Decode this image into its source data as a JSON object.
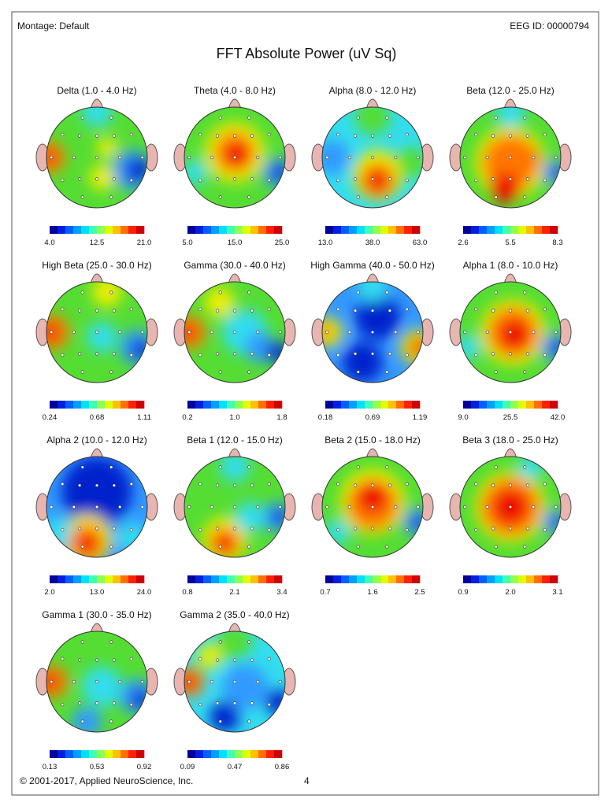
{
  "header": {
    "montage": "Montage:  Default",
    "eeg_id": "EEG ID:  00000794"
  },
  "title": "FFT Absolute Power  (uV Sq)",
  "maps": [
    {
      "title": "Delta (1.0 - 4.0 Hz)",
      "scale": [
        "4.0",
        "12.5",
        "21.0"
      ]
    },
    {
      "title": "Theta (4.0 - 8.0 Hz)",
      "scale": [
        "5.0",
        "15.0",
        "25.0"
      ]
    },
    {
      "title": "Alpha (8.0 - 12.0 Hz)",
      "scale": [
        "13.0",
        "38.0",
        "63.0"
      ]
    },
    {
      "title": "Beta (12.0 - 25.0 Hz)",
      "scale": [
        "2.6",
        "5.5",
        "8.3"
      ]
    },
    {
      "title": "High Beta (25.0 - 30.0 Hz)",
      "scale": [
        "0.24",
        "0.68",
        "1.11"
      ]
    },
    {
      "title": "Gamma (30.0 - 40.0 Hz)",
      "scale": [
        "0.2",
        "1.0",
        "1.8"
      ]
    },
    {
      "title": "High Gamma (40.0 - 50.0 Hz)",
      "scale": [
        "0.18",
        "0.69",
        "1.19"
      ]
    },
    {
      "title": "Alpha 1 (8.0 - 10.0 Hz)",
      "scale": [
        "9.0",
        "25.5",
        "42.0"
      ]
    },
    {
      "title": "Alpha 2 (10.0 - 12.0 Hz)",
      "scale": [
        "2.0",
        "13.0",
        "24.0"
      ]
    },
    {
      "title": "Beta 1 (12.0 - 15.0 Hz)",
      "scale": [
        "0.8",
        "2.1",
        "3.4"
      ]
    },
    {
      "title": "Beta 2 (15.0 - 18.0 Hz)",
      "scale": [
        "0.7",
        "1.6",
        "2.5"
      ]
    },
    {
      "title": "Beta 3 (18.0 - 25.0 Hz)",
      "scale": [
        "0.9",
        "2.0",
        "3.1"
      ]
    },
    {
      "title": "Gamma 1 (30.0 - 35.0 Hz)",
      "scale": [
        "0.13",
        "0.53",
        "0.92"
      ]
    },
    {
      "title": "Gamma 2 (35.0 - 40.0 Hz)",
      "scale": [
        "0.09",
        "0.47",
        "0.86"
      ]
    }
  ],
  "footer": {
    "copyright": "© 2001-2017, Applied NeuroScience, Inc.",
    "page": "4"
  }
}
